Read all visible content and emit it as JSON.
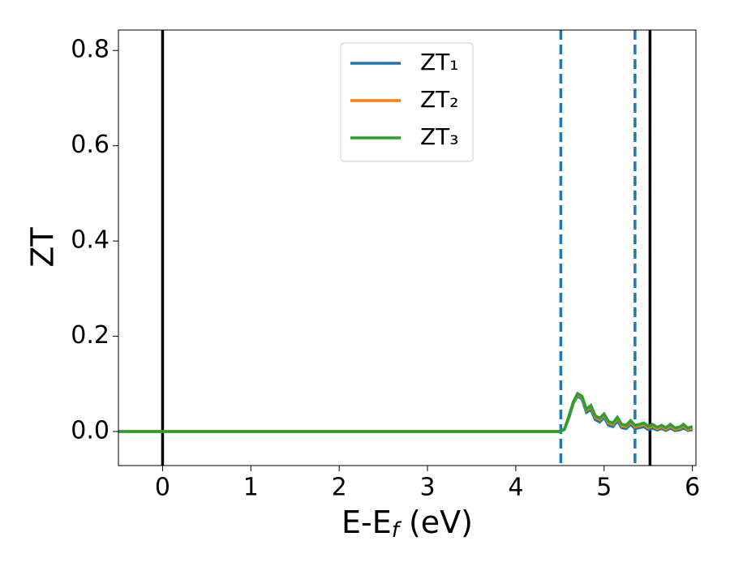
{
  "chart_data": {
    "type": "line",
    "xlabel": [
      "E-E",
      "f",
      " (eV)"
    ],
    "ylabel": "ZT",
    "x": [
      -0.5,
      0,
      1,
      2,
      3,
      4,
      4.45,
      4.5,
      4.55,
      4.6,
      4.65,
      4.7,
      4.75,
      4.8,
      4.85,
      4.9,
      4.95,
      5.0,
      5.05,
      5.1,
      5.15,
      5.2,
      5.25,
      5.3,
      5.35,
      5.4,
      5.45,
      5.5,
      5.55,
      5.6,
      5.65,
      5.7,
      5.75,
      5.8,
      5.85,
      5.9,
      5.95,
      6.0
    ],
    "series": [
      {
        "name": "ZT₁",
        "color": "#1f77b4",
        "values": [
          0,
          0,
          0,
          0,
          0,
          0,
          0,
          0,
          0.004,
          0.028,
          0.058,
          0.075,
          0.068,
          0.04,
          0.046,
          0.025,
          0.02,
          0.03,
          0.013,
          0.01,
          0.022,
          0.008,
          0.006,
          0.015,
          0.006,
          0.008,
          0.01,
          0.004,
          0.007,
          0.003,
          0.006,
          0.002,
          0.007,
          0.002,
          0.003,
          0.007,
          0.002,
          0.004
        ]
      },
      {
        "name": "ZT₂",
        "color": "#ff7f0e",
        "values": [
          0,
          0,
          0,
          0,
          0,
          0,
          0,
          0,
          0.005,
          0.03,
          0.06,
          0.078,
          0.072,
          0.045,
          0.052,
          0.03,
          0.025,
          0.035,
          0.018,
          0.015,
          0.028,
          0.012,
          0.01,
          0.02,
          0.01,
          0.012,
          0.015,
          0.008,
          0.012,
          0.006,
          0.01,
          0.005,
          0.012,
          0.005,
          0.006,
          0.012,
          0.004,
          0.008
        ]
      },
      {
        "name": "ZT₃",
        "color": "#2ca02c",
        "values": [
          0,
          0,
          0,
          0,
          0,
          0,
          0,
          0,
          0.005,
          0.031,
          0.062,
          0.08,
          0.074,
          0.047,
          0.055,
          0.033,
          0.028,
          0.037,
          0.021,
          0.018,
          0.03,
          0.015,
          0.013,
          0.023,
          0.013,
          0.015,
          0.018,
          0.011,
          0.015,
          0.009,
          0.013,
          0.008,
          0.015,
          0.008,
          0.009,
          0.015,
          0.007,
          0.011
        ]
      }
    ],
    "vlines": [
      {
        "x": 0,
        "color": "#000000",
        "style": "solid"
      },
      {
        "x": 4.51,
        "color": "#1f77b4",
        "style": "dashed"
      },
      {
        "x": 5.35,
        "color": "#1f77b4",
        "style": "dashed"
      },
      {
        "x": 5.52,
        "color": "#000000",
        "style": "solid"
      }
    ],
    "xlim": [
      -0.5,
      6.04
    ],
    "ylim": [
      -0.0715,
      0.843
    ],
    "xticks": [
      0,
      1,
      2,
      3,
      4,
      5,
      6
    ],
    "yticks": [
      {
        "value": 0,
        "label": "0.0"
      },
      0.2,
      0.4,
      0.6,
      0.8
    ],
    "legend": "upper-center",
    "grid": false
  }
}
